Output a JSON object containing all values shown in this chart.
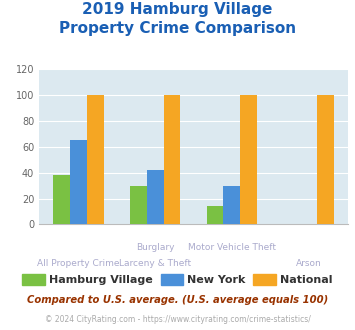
{
  "title_line1": "2019 Hamburg Village",
  "title_line2": "Property Crime Comparison",
  "x_labels_upper": [
    "",
    "Burglary",
    "Motor Vehicle Theft",
    ""
  ],
  "x_labels_lower": [
    "All Property Crime",
    "Larceny & Theft",
    "",
    "Arson"
  ],
  "hamburg_village": [
    38,
    30,
    14,
    0
  ],
  "new_york": [
    65,
    42,
    30,
    0
  ],
  "national": [
    100,
    100,
    100,
    100
  ],
  "colors": {
    "hamburg_village": "#7ac143",
    "new_york": "#4a90d9",
    "national": "#f5a623",
    "background": "#dce9f0",
    "title": "#1a5fb4",
    "xlabel_color": "#aaaacc",
    "subtitle_text": "#993300",
    "footer": "#aaaaaa",
    "grid": "#ffffff",
    "legend_text": "#333333"
  },
  "ylim": [
    0,
    120
  ],
  "yticks": [
    0,
    20,
    40,
    60,
    80,
    100,
    120
  ],
  "legend_labels": [
    "Hamburg Village",
    "New York",
    "National"
  ],
  "note_text": "Compared to U.S. average. (U.S. average equals 100)",
  "footer_text": "© 2024 CityRating.com - https://www.cityrating.com/crime-statistics/"
}
